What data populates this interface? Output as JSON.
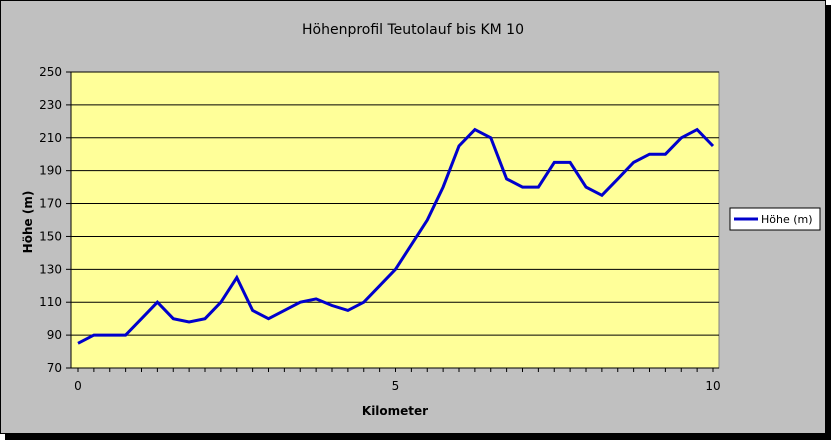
{
  "chart_data": {
    "type": "line",
    "title": "Höhenprofil Teutolauf bis KM 10",
    "xlabel": "Kilometer",
    "ylabel": "Höhe (m)",
    "xlim": [
      0,
      10
    ],
    "ylim": [
      70,
      250
    ],
    "x_ticks": [
      "0",
      "5",
      "10"
    ],
    "y_ticks": [
      "70",
      "90",
      "110",
      "130",
      "150",
      "170",
      "190",
      "210",
      "230",
      "250"
    ],
    "grid": true,
    "legend_position": "right",
    "series": [
      {
        "name": "Höhe (m)",
        "color": "#0000cc",
        "x": [
          0,
          0.25,
          0.5,
          0.75,
          1.0,
          1.25,
          1.5,
          1.75,
          2.0,
          2.25,
          2.5,
          2.75,
          3.0,
          3.25,
          3.5,
          3.75,
          4.0,
          4.25,
          4.5,
          4.75,
          5.0,
          5.25,
          5.5,
          5.75,
          6.0,
          6.25,
          6.5,
          6.75,
          7.0,
          7.25,
          7.5,
          7.75,
          8.0,
          8.25,
          8.5,
          8.75,
          9.0,
          9.25,
          9.5,
          9.75,
          10.0
        ],
        "values": [
          85,
          90,
          90,
          90,
          100,
          110,
          100,
          98,
          100,
          110,
          125,
          105,
          100,
          105,
          110,
          112,
          108,
          105,
          110,
          120,
          130,
          145,
          160,
          180,
          205,
          215,
          210,
          185,
          180,
          180,
          195,
          195,
          180,
          175,
          185,
          195,
          200,
          200,
          210,
          215,
          205
        ]
      }
    ]
  }
}
